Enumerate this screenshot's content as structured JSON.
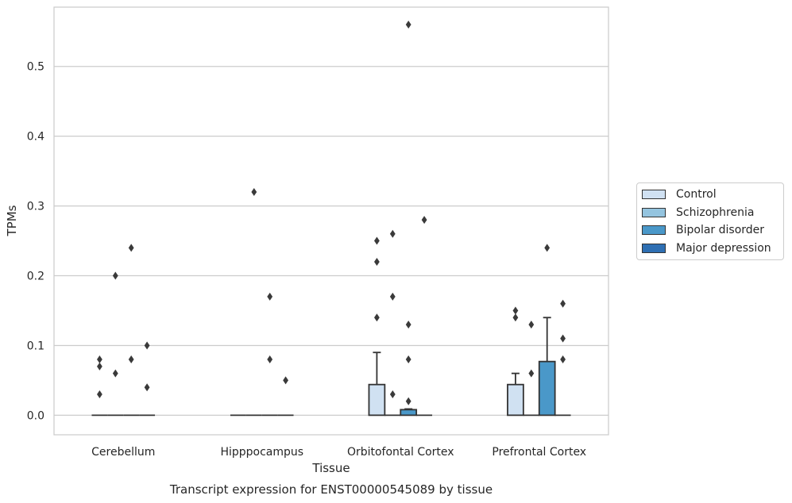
{
  "chart_data": {
    "type": "bar",
    "title": "",
    "caption": "Transcript expression for ENST00000545089 by tissue",
    "xlabel": "Tissue",
    "ylabel": "TPMs",
    "ylim": [
      -0.028,
      0.585
    ],
    "yticks": [
      0.0,
      0.1,
      0.2,
      0.3,
      0.4,
      0.5
    ],
    "ytick_labels": [
      "0.0",
      "0.1",
      "0.2",
      "0.3",
      "0.4",
      "0.5"
    ],
    "grid": "horizontal",
    "legend_position": "right",
    "categories": [
      "Cerebellum",
      "Hipppocampus",
      "Orbitofontal Cortex",
      "Prefrontal Cortex"
    ],
    "series": [
      {
        "name": "Control",
        "color": "#d0e1f2",
        "values": [
          0.0,
          0.0,
          0.044,
          0.044
        ],
        "error_upper": [
          0.0,
          0.0,
          0.09,
          0.06
        ],
        "outliers": [
          [
            0.03,
            0.07,
            0.08
          ],
          [],
          [
            0.14,
            0.22,
            0.25
          ],
          [
            0.14,
            0.15
          ]
        ]
      },
      {
        "name": "Schizophrenia",
        "color": "#94c4df",
        "values": [
          0.0,
          0.0,
          0.0,
          0.0
        ],
        "error_upper": [
          0.0,
          0.0,
          0.0,
          0.0
        ],
        "outliers": [
          [
            0.06,
            0.2
          ],
          [
            0.32
          ],
          [
            0.03,
            0.17,
            0.26
          ],
          [
            0.06,
            0.13
          ]
        ]
      },
      {
        "name": "Bipolar disorder",
        "color": "#4a98c9",
        "values": [
          0.0,
          0.0,
          0.008,
          0.077
        ],
        "error_upper": [
          0.0,
          0.0,
          0.009,
          0.14
        ],
        "outliers": [
          [
            0.08,
            0.24
          ],
          [
            0.08,
            0.17
          ],
          [
            0.02,
            0.08,
            0.13,
            0.56
          ],
          [
            0.24
          ]
        ]
      },
      {
        "name": "Major depression",
        "color": "#2e6fb3",
        "values": [
          0.0,
          0.0,
          0.0,
          0.0
        ],
        "error_upper": [
          0.0,
          0.0,
          0.0,
          0.0
        ],
        "outliers": [
          [
            0.04,
            0.1
          ],
          [
            0.05
          ],
          [
            0.28
          ],
          [
            0.08,
            0.11,
            0.16
          ]
        ]
      }
    ]
  }
}
